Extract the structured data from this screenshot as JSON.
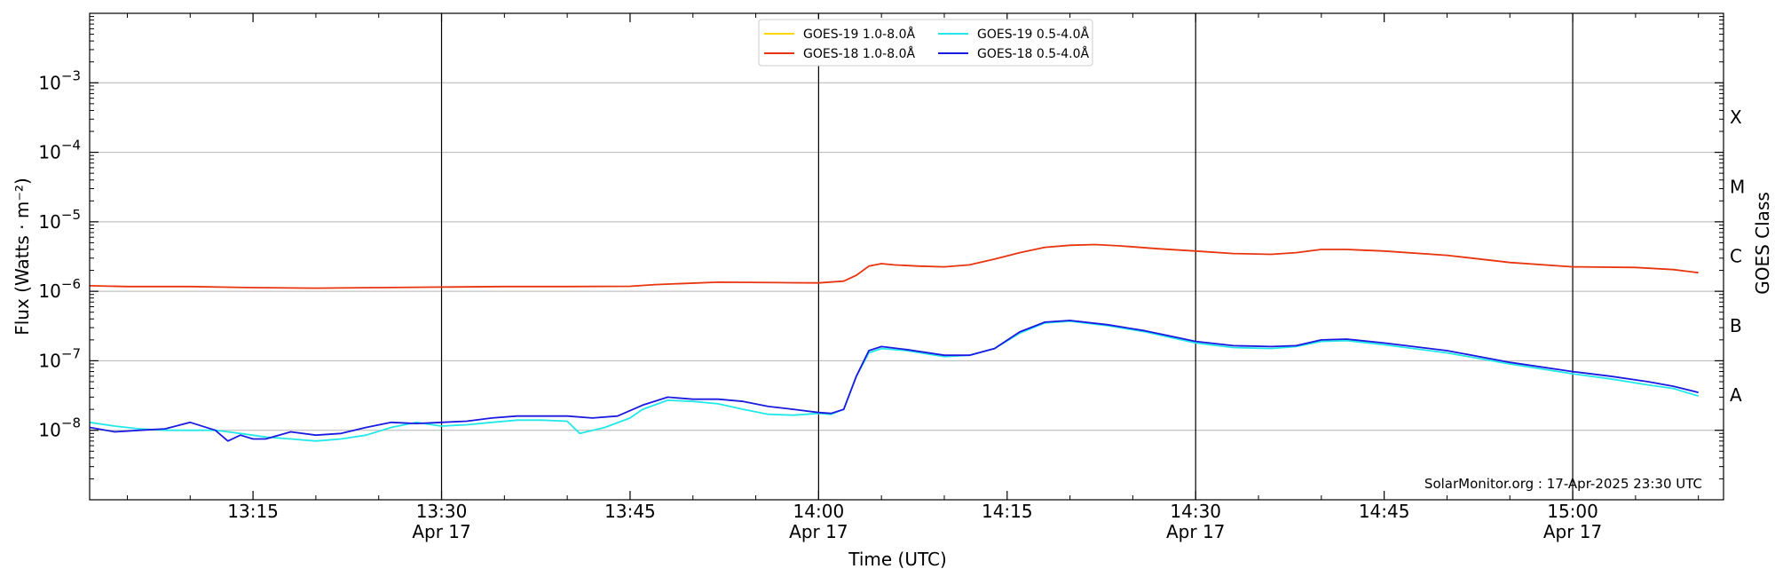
{
  "chart_data": {
    "type": "line",
    "title": "",
    "xlabel": "Time (UTC)",
    "ylabel": "Flux (Watts · m⁻²)",
    "y2label": "GOES Class",
    "yscale": "log",
    "xlim": [
      "13:02",
      "15:12"
    ],
    "ylim": [
      1e-09,
      0.01
    ],
    "grid": {
      "horizontal": true,
      "vertical_major": true
    },
    "legend_position": "top-center",
    "credit": "SolarMonitor.org : 17-Apr-2025 23:30 UTC",
    "x_ticks": [
      {
        "time": "13:15",
        "label": "13:15",
        "date": ""
      },
      {
        "time": "13:30",
        "label": "13:30",
        "date": "Apr 17"
      },
      {
        "time": "13:45",
        "label": "13:45",
        "date": ""
      },
      {
        "time": "14:00",
        "label": "14:00",
        "date": "Apr 17"
      },
      {
        "time": "14:15",
        "label": "14:15",
        "date": ""
      },
      {
        "time": "14:30",
        "label": "14:30",
        "date": "Apr 17"
      },
      {
        "time": "14:45",
        "label": "14:45",
        "date": ""
      },
      {
        "time": "15:00",
        "label": "15:00",
        "date": "Apr 17"
      }
    ],
    "y_ticks": [
      {
        "value": 1e-08,
        "base": "10",
        "exp": "−8"
      },
      {
        "value": 1e-07,
        "base": "10",
        "exp": "−7"
      },
      {
        "value": 1e-06,
        "base": "10",
        "exp": "−6"
      },
      {
        "value": 1e-05,
        "base": "10",
        "exp": "−5"
      },
      {
        "value": 0.0001,
        "base": "10",
        "exp": "−4"
      },
      {
        "value": 0.001,
        "base": "10",
        "exp": "−3"
      }
    ],
    "goes_classes": [
      {
        "label": "A",
        "value": 3.2e-08
      },
      {
        "label": "B",
        "value": 3.2e-07
      },
      {
        "label": "C",
        "value": 3.2e-06
      },
      {
        "label": "M",
        "value": 3.2e-05
      },
      {
        "label": "X",
        "value": 0.00032
      }
    ],
    "series": [
      {
        "name": "GOES-19 1.0-8.0Å",
        "color": "#ffd700",
        "times": [],
        "values": []
      },
      {
        "name": "GOES-18 1.0-8.0Å",
        "color": "#e8340f",
        "times": [
          "13:02",
          "13:05",
          "13:10",
          "13:15",
          "13:20",
          "13:25",
          "13:30",
          "13:35",
          "13:40",
          "13:45",
          "13:47",
          "13:52",
          "13:57",
          "14:00",
          "14:02",
          "14:03",
          "14:04",
          "14:05",
          "14:06",
          "14:08",
          "14:10",
          "14:12",
          "14:14",
          "14:16",
          "14:18",
          "14:20",
          "14:22",
          "14:24",
          "14:27",
          "14:30",
          "14:33",
          "14:36",
          "14:38",
          "14:40",
          "14:42",
          "14:45",
          "14:50",
          "14:55",
          "15:00",
          "15:05",
          "15:08",
          "15:10"
        ],
        "values": [
          1.2e-06,
          1.17e-06,
          1.17e-06,
          1.13e-06,
          1.11e-06,
          1.13e-06,
          1.15e-06,
          1.17e-06,
          1.17e-06,
          1.18e-06,
          1.25e-06,
          1.35e-06,
          1.33e-06,
          1.32e-06,
          1.4e-06,
          1.7e-06,
          2.3e-06,
          2.5e-06,
          2.4e-06,
          2.3e-06,
          2.25e-06,
          2.4e-06,
          2.9e-06,
          3.6e-06,
          4.3e-06,
          4.6e-06,
          4.7e-06,
          4.5e-06,
          4.1e-06,
          3.8e-06,
          3.5e-06,
          3.4e-06,
          3.6e-06,
          4e-06,
          4e-06,
          3.8e-06,
          3.3e-06,
          2.6e-06,
          2.25e-06,
          2.2e-06,
          2.05e-06,
          1.85e-06
        ]
      },
      {
        "name": "GOES-19 0.5-4.0Å",
        "color": "#22e8e8",
        "times": [
          "13:02",
          "13:04",
          "13:06",
          "13:08",
          "13:10",
          "13:12",
          "13:14",
          "13:16",
          "13:18",
          "13:20",
          "13:22",
          "13:24",
          "13:26",
          "13:28",
          "13:30",
          "13:32",
          "13:34",
          "13:36",
          "13:38",
          "13:40",
          "13:41",
          "13:43",
          "13:45",
          "13:46",
          "13:48",
          "13:50",
          "13:52",
          "13:54",
          "13:56",
          "13:58",
          "14:00",
          "14:01",
          "14:02",
          "14:03",
          "14:04",
          "14:05",
          "14:07",
          "14:10",
          "14:12",
          "14:14",
          "14:16",
          "14:18",
          "14:20",
          "14:23",
          "14:26",
          "14:30",
          "14:33",
          "14:36",
          "14:38",
          "14:40",
          "14:42",
          "14:45",
          "14:50",
          "14:55",
          "15:00",
          "15:03",
          "15:06",
          "15:08",
          "15:10"
        ],
        "values": [
          1.3e-08,
          1.15e-08,
          1.05e-08,
          1e-08,
          1e-08,
          1e-08,
          9e-09,
          8e-09,
          7.5e-09,
          7e-09,
          7.5e-09,
          8.5e-09,
          1.1e-08,
          1.3e-08,
          1.15e-08,
          1.2e-08,
          1.3e-08,
          1.4e-08,
          1.4e-08,
          1.35e-08,
          9e-09,
          1.1e-08,
          1.5e-08,
          2e-08,
          2.7e-08,
          2.6e-08,
          2.4e-08,
          2e-08,
          1.7e-08,
          1.65e-08,
          1.75e-08,
          1.7e-08,
          2e-08,
          6e-08,
          1.3e-07,
          1.5e-07,
          1.4e-07,
          1.15e-07,
          1.2e-07,
          1.5e-07,
          2.5e-07,
          3.5e-07,
          3.7e-07,
          3.2e-07,
          2.6e-07,
          1.8e-07,
          1.55e-07,
          1.5e-07,
          1.6e-07,
          1.9e-07,
          1.95e-07,
          1.7e-07,
          1.3e-07,
          9e-08,
          6.5e-08,
          5.5e-08,
          4.5e-08,
          4e-08,
          3.1e-08
        ]
      },
      {
        "name": "GOES-18 0.5-4.0Å",
        "color": "#1a1ae0",
        "times": [
          "13:02",
          "13:04",
          "13:06",
          "13:08",
          "13:10",
          "13:12",
          "13:13",
          "13:14",
          "13:15",
          "13:16",
          "13:18",
          "13:20",
          "13:22",
          "13:24",
          "13:26",
          "13:28",
          "13:30",
          "13:32",
          "13:34",
          "13:36",
          "13:38",
          "13:40",
          "13:42",
          "13:44",
          "13:46",
          "13:48",
          "13:50",
          "13:52",
          "13:54",
          "13:56",
          "13:58",
          "14:00",
          "14:01",
          "14:02",
          "14:03",
          "14:04",
          "14:05",
          "14:07",
          "14:10",
          "14:12",
          "14:14",
          "14:16",
          "14:18",
          "14:20",
          "14:23",
          "14:26",
          "14:30",
          "14:33",
          "14:36",
          "14:38",
          "14:40",
          "14:42",
          "14:45",
          "14:50",
          "14:55",
          "15:00",
          "15:03",
          "15:06",
          "15:08",
          "15:10"
        ],
        "values": [
          1.1e-08,
          9.5e-09,
          1e-08,
          1.05e-08,
          1.3e-08,
          1e-08,
          7e-09,
          8.5e-09,
          7.5e-09,
          7.5e-09,
          9.5e-09,
          8.5e-09,
          9e-09,
          1.1e-08,
          1.3e-08,
          1.25e-08,
          1.3e-08,
          1.35e-08,
          1.5e-08,
          1.6e-08,
          1.6e-08,
          1.6e-08,
          1.5e-08,
          1.6e-08,
          2.3e-08,
          3e-08,
          2.8e-08,
          2.8e-08,
          2.6e-08,
          2.2e-08,
          2e-08,
          1.8e-08,
          1.75e-08,
          2e-08,
          6e-08,
          1.4e-07,
          1.6e-07,
          1.45e-07,
          1.2e-07,
          1.2e-07,
          1.5e-07,
          2.6e-07,
          3.6e-07,
          3.8e-07,
          3.3e-07,
          2.7e-07,
          1.9e-07,
          1.65e-07,
          1.6e-07,
          1.65e-07,
          2e-07,
          2.05e-07,
          1.8e-07,
          1.4e-07,
          9.5e-08,
          7e-08,
          6e-08,
          5e-08,
          4.3e-08,
          3.5e-08
        ]
      }
    ]
  }
}
